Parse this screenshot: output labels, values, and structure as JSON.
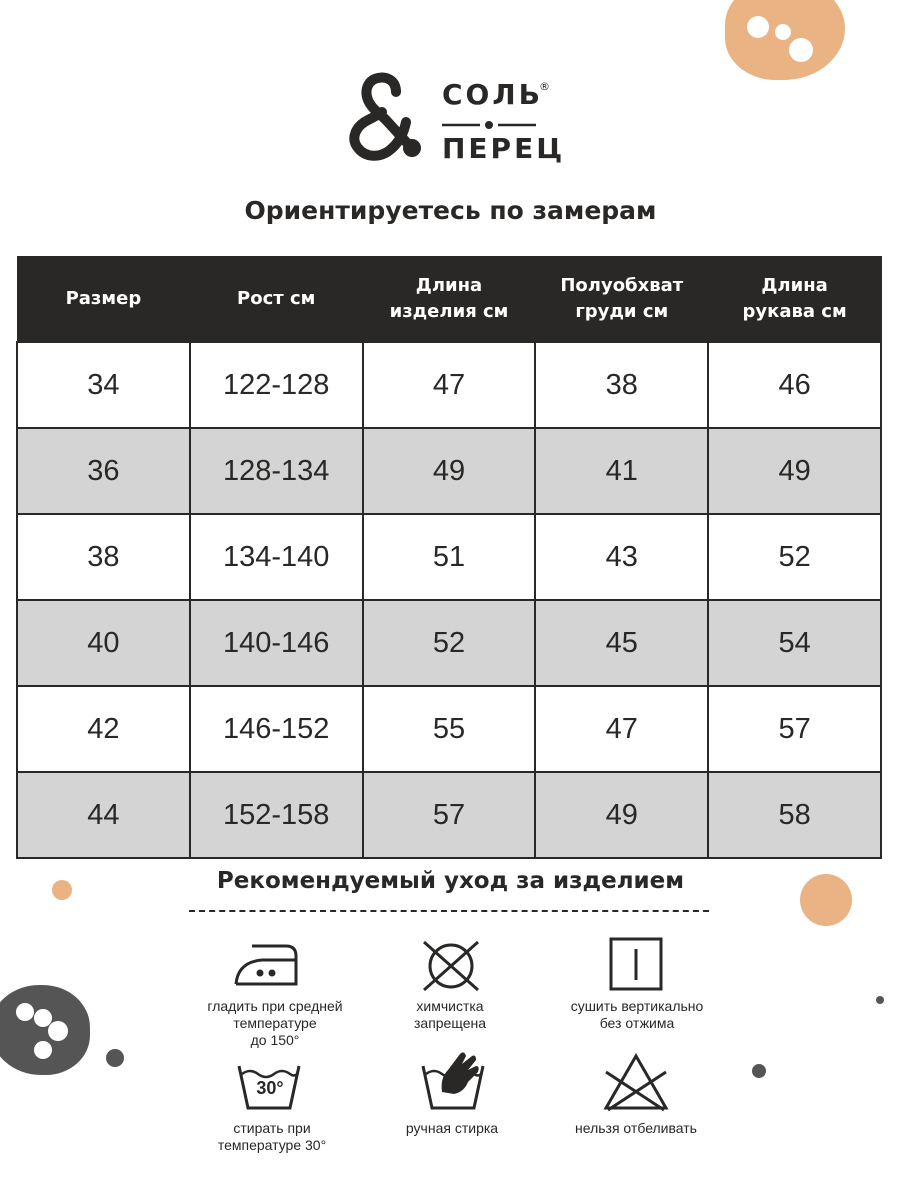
{
  "brand": {
    "amp": "&",
    "line1": "СОЛЬ",
    "reg": "®",
    "line2": "ПЕРЕЦ"
  },
  "title": "Ориентируетесь по замерам",
  "table": {
    "headers": [
      "Размер",
      "Рост см",
      "Длина\nизделия см",
      "Полуобхват\nгруди см",
      "Длина\nрукава см"
    ],
    "rows": [
      [
        "34",
        "122-128",
        "47",
        "38",
        "46"
      ],
      [
        "36",
        "128-134",
        "49",
        "41",
        "49"
      ],
      [
        "38",
        "134-140",
        "51",
        "43",
        "52"
      ],
      [
        "40",
        "140-146",
        "52",
        "45",
        "54"
      ],
      [
        "42",
        "146-152",
        "55",
        "47",
        "57"
      ],
      [
        "44",
        "152-158",
        "57",
        "49",
        "58"
      ]
    ]
  },
  "care": {
    "title": "Рекомендуемый уход за изделием",
    "items": [
      {
        "icon": "iron-medium-icon",
        "label": "гладить при средней\nтемпературе\nдо 150°"
      },
      {
        "icon": "no-dry-clean-icon",
        "label": "химчистка\nзапрещена"
      },
      {
        "icon": "vertical-dry-icon",
        "label": "сушить вертикально\nбез отжима"
      },
      {
        "icon": "wash-30-icon",
        "icon_text": "30°",
        "label": "стирать при\nтемпературе 30°"
      },
      {
        "icon": "hand-wash-icon",
        "label": "ручная стирка"
      },
      {
        "icon": "no-bleach-icon",
        "label": "нельзя отбеливать"
      }
    ]
  },
  "colors": {
    "dark": "#2a2826",
    "orange": "#e9b383",
    "gray_row": "#d4d4d4",
    "blob_gray": "#555555"
  }
}
